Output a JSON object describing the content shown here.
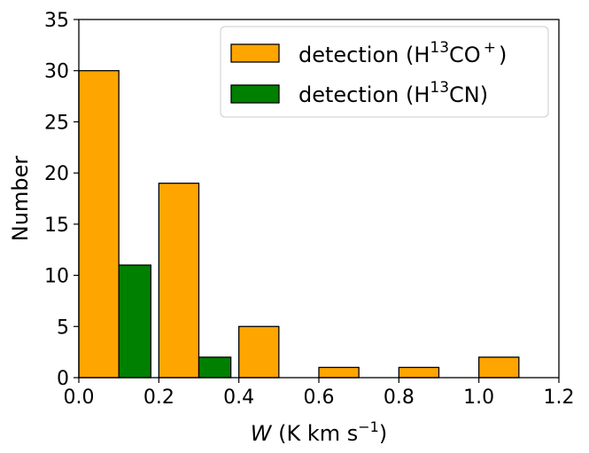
{
  "chart_data": {
    "type": "bar",
    "xlabel": {
      "var": "W",
      "units_pre": " (K km s",
      "units_sup": "−1",
      "units_post": ")"
    },
    "ylabel": "Number",
    "xlim": [
      0.0,
      1.2
    ],
    "ylim": [
      0,
      35
    ],
    "xticks": [
      "0.0",
      "0.2",
      "0.4",
      "0.6",
      "0.8",
      "1.0",
      "1.2"
    ],
    "yticks": [
      "0",
      "5",
      "10",
      "15",
      "20",
      "25",
      "30",
      "35"
    ],
    "grid": false,
    "legend_position": "top-right",
    "series": [
      {
        "name": "detection (H13CO+)",
        "legend": {
          "pre": "detection (H",
          "sup1": "13",
          "mid": "CO",
          "sup2": "+",
          "post": ")"
        },
        "color": "#FFA500",
        "bins": [
          {
            "x0": 0.0,
            "x1": 0.1,
            "value": 30
          },
          {
            "x0": 0.2,
            "x1": 0.3,
            "value": 19
          },
          {
            "x0": 0.4,
            "x1": 0.5,
            "value": 5
          },
          {
            "x0": 0.6,
            "x1": 0.7,
            "value": 1
          },
          {
            "x0": 0.8,
            "x1": 0.9,
            "value": 1
          },
          {
            "x0": 1.0,
            "x1": 1.1,
            "value": 2
          }
        ]
      },
      {
        "name": "detection (H13CN)",
        "legend": {
          "pre": "detection (H",
          "sup1": "13",
          "mid": "CN)"
        },
        "color": "#008000",
        "bins": [
          {
            "x0": 0.1,
            "x1": 0.18,
            "value": 11
          },
          {
            "x0": 0.3,
            "x1": 0.38,
            "value": 2
          }
        ]
      }
    ]
  }
}
